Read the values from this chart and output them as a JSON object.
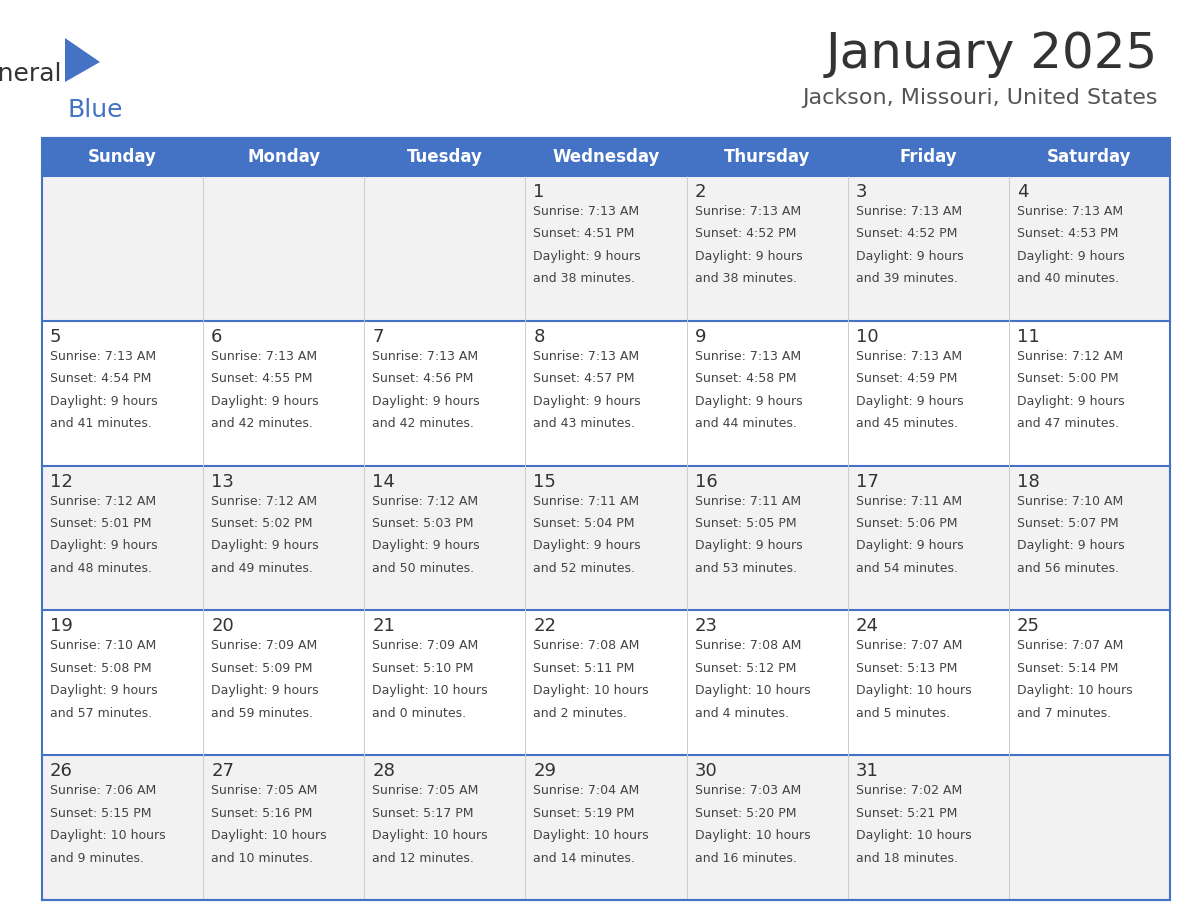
{
  "title": "January 2025",
  "subtitle": "Jackson, Missouri, United States",
  "header_bg": "#4472C4",
  "header_text_color": "#FFFFFF",
  "row_bg_odd": "#F2F2F2",
  "row_bg_even": "#FFFFFF",
  "cell_text_color": "#444444",
  "day_number_color": "#333333",
  "days_of_week": [
    "Sunday",
    "Monday",
    "Tuesday",
    "Wednesday",
    "Thursday",
    "Friday",
    "Saturday"
  ],
  "calendar_data": [
    [
      {
        "day": null,
        "sunrise": null,
        "sunset": null,
        "daylight": null
      },
      {
        "day": null,
        "sunrise": null,
        "sunset": null,
        "daylight": null
      },
      {
        "day": null,
        "sunrise": null,
        "sunset": null,
        "daylight": null
      },
      {
        "day": 1,
        "sunrise": "7:13 AM",
        "sunset": "4:51 PM",
        "daylight": "9 hours\nand 38 minutes."
      },
      {
        "day": 2,
        "sunrise": "7:13 AM",
        "sunset": "4:52 PM",
        "daylight": "9 hours\nand 38 minutes."
      },
      {
        "day": 3,
        "sunrise": "7:13 AM",
        "sunset": "4:52 PM",
        "daylight": "9 hours\nand 39 minutes."
      },
      {
        "day": 4,
        "sunrise": "7:13 AM",
        "sunset": "4:53 PM",
        "daylight": "9 hours\nand 40 minutes."
      }
    ],
    [
      {
        "day": 5,
        "sunrise": "7:13 AM",
        "sunset": "4:54 PM",
        "daylight": "9 hours\nand 41 minutes."
      },
      {
        "day": 6,
        "sunrise": "7:13 AM",
        "sunset": "4:55 PM",
        "daylight": "9 hours\nand 42 minutes."
      },
      {
        "day": 7,
        "sunrise": "7:13 AM",
        "sunset": "4:56 PM",
        "daylight": "9 hours\nand 42 minutes."
      },
      {
        "day": 8,
        "sunrise": "7:13 AM",
        "sunset": "4:57 PM",
        "daylight": "9 hours\nand 43 minutes."
      },
      {
        "day": 9,
        "sunrise": "7:13 AM",
        "sunset": "4:58 PM",
        "daylight": "9 hours\nand 44 minutes."
      },
      {
        "day": 10,
        "sunrise": "7:13 AM",
        "sunset": "4:59 PM",
        "daylight": "9 hours\nand 45 minutes."
      },
      {
        "day": 11,
        "sunrise": "7:12 AM",
        "sunset": "5:00 PM",
        "daylight": "9 hours\nand 47 minutes."
      }
    ],
    [
      {
        "day": 12,
        "sunrise": "7:12 AM",
        "sunset": "5:01 PM",
        "daylight": "9 hours\nand 48 minutes."
      },
      {
        "day": 13,
        "sunrise": "7:12 AM",
        "sunset": "5:02 PM",
        "daylight": "9 hours\nand 49 minutes."
      },
      {
        "day": 14,
        "sunrise": "7:12 AM",
        "sunset": "5:03 PM",
        "daylight": "9 hours\nand 50 minutes."
      },
      {
        "day": 15,
        "sunrise": "7:11 AM",
        "sunset": "5:04 PM",
        "daylight": "9 hours\nand 52 minutes."
      },
      {
        "day": 16,
        "sunrise": "7:11 AM",
        "sunset": "5:05 PM",
        "daylight": "9 hours\nand 53 minutes."
      },
      {
        "day": 17,
        "sunrise": "7:11 AM",
        "sunset": "5:06 PM",
        "daylight": "9 hours\nand 54 minutes."
      },
      {
        "day": 18,
        "sunrise": "7:10 AM",
        "sunset": "5:07 PM",
        "daylight": "9 hours\nand 56 minutes."
      }
    ],
    [
      {
        "day": 19,
        "sunrise": "7:10 AM",
        "sunset": "5:08 PM",
        "daylight": "9 hours\nand 57 minutes."
      },
      {
        "day": 20,
        "sunrise": "7:09 AM",
        "sunset": "5:09 PM",
        "daylight": "9 hours\nand 59 minutes."
      },
      {
        "day": 21,
        "sunrise": "7:09 AM",
        "sunset": "5:10 PM",
        "daylight": "10 hours\nand 0 minutes."
      },
      {
        "day": 22,
        "sunrise": "7:08 AM",
        "sunset": "5:11 PM",
        "daylight": "10 hours\nand 2 minutes."
      },
      {
        "day": 23,
        "sunrise": "7:08 AM",
        "sunset": "5:12 PM",
        "daylight": "10 hours\nand 4 minutes."
      },
      {
        "day": 24,
        "sunrise": "7:07 AM",
        "sunset": "5:13 PM",
        "daylight": "10 hours\nand 5 minutes."
      },
      {
        "day": 25,
        "sunrise": "7:07 AM",
        "sunset": "5:14 PM",
        "daylight": "10 hours\nand 7 minutes."
      }
    ],
    [
      {
        "day": 26,
        "sunrise": "7:06 AM",
        "sunset": "5:15 PM",
        "daylight": "10 hours\nand 9 minutes."
      },
      {
        "day": 27,
        "sunrise": "7:05 AM",
        "sunset": "5:16 PM",
        "daylight": "10 hours\nand 10 minutes."
      },
      {
        "day": 28,
        "sunrise": "7:05 AM",
        "sunset": "5:17 PM",
        "daylight": "10 hours\nand 12 minutes."
      },
      {
        "day": 29,
        "sunrise": "7:04 AM",
        "sunset": "5:19 PM",
        "daylight": "10 hours\nand 14 minutes."
      },
      {
        "day": 30,
        "sunrise": "7:03 AM",
        "sunset": "5:20 PM",
        "daylight": "10 hours\nand 16 minutes."
      },
      {
        "day": 31,
        "sunrise": "7:02 AM",
        "sunset": "5:21 PM",
        "daylight": "10 hours\nand 18 minutes."
      },
      {
        "day": null,
        "sunrise": null,
        "sunset": null,
        "daylight": null
      }
    ]
  ],
  "border_color": "#4472C4",
  "line_color": "#4472C4",
  "title_fontsize": 36,
  "subtitle_fontsize": 16,
  "dow_fontsize": 12,
  "day_num_fontsize": 13,
  "cell_fontsize": 9
}
